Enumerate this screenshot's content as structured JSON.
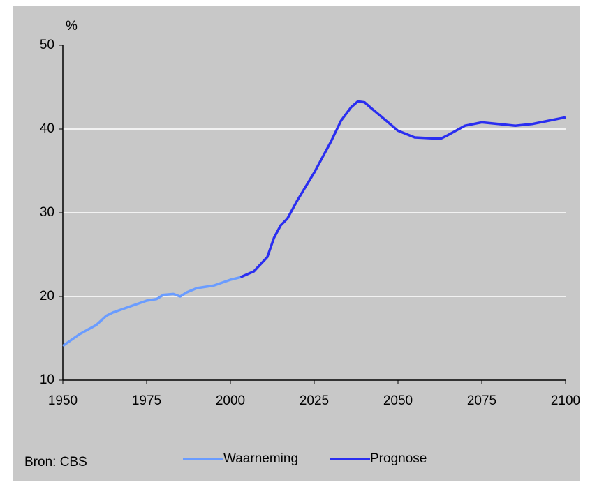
{
  "chart_data": {
    "type": "line",
    "y_label": "%",
    "source": "Bron: CBS",
    "xlim": [
      1950,
      2100
    ],
    "xticks": [
      1950,
      1975,
      2000,
      2025,
      2050,
      2075,
      2100
    ],
    "ylim": [
      10,
      50
    ],
    "yticks": [
      10,
      20,
      30,
      40,
      50
    ],
    "grid": true,
    "series": [
      {
        "name": "Waarneming",
        "color": "#6a9cff",
        "x": [
          1950,
          1955,
          1960,
          1963,
          1965,
          1970,
          1975,
          1978,
          1980,
          1983,
          1985,
          1987,
          1990,
          1995,
          2000,
          2003
        ],
        "values": [
          14.1,
          15.5,
          16.6,
          17.7,
          18.1,
          18.8,
          19.5,
          19.7,
          20.2,
          20.3,
          20.0,
          20.5,
          21.0,
          21.3,
          22.0,
          22.3
        ]
      },
      {
        "name": "Prognose",
        "color": "#2a2ef0",
        "x": [
          2003,
          2007,
          2011,
          2013,
          2015,
          2017,
          2020,
          2025,
          2030,
          2033,
          2036,
          2038,
          2040,
          2042,
          2045,
          2050,
          2055,
          2060,
          2063,
          2065,
          2070,
          2075,
          2080,
          2085,
          2090,
          2095,
          2100
        ],
        "values": [
          22.3,
          23.0,
          24.7,
          27.0,
          28.5,
          29.3,
          31.5,
          34.8,
          38.5,
          41.0,
          42.6,
          43.3,
          43.2,
          42.5,
          41.5,
          39.8,
          39.0,
          38.9,
          38.9,
          39.3,
          40.4,
          40.8,
          40.6,
          40.4,
          40.6,
          41.0,
          41.4
        ]
      }
    ]
  }
}
